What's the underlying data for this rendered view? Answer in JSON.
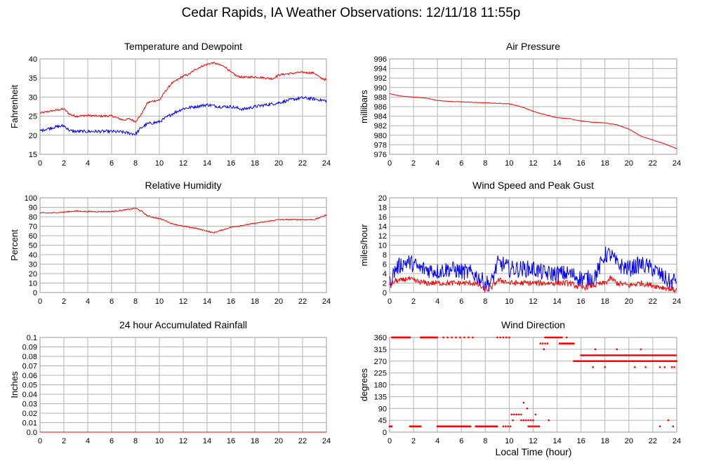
{
  "page": {
    "title": "Cedar Rapids, IA Weather Observations: 12/11/18 11:55p",
    "x_axis_label": "Local Time (hour)"
  },
  "colors": {
    "red": "#ff0000",
    "blue": "#0000ff",
    "grid": "#b4b4b4",
    "frame": "#999999"
  },
  "chart_data": [
    {
      "id": "temperature",
      "type": "line",
      "title": "Temperature and Dewpoint",
      "ylabel": "Fahrenheit",
      "xlim": [
        0,
        24
      ],
      "ylim": [
        15,
        40
      ],
      "xticks": [
        0,
        2,
        4,
        6,
        8,
        10,
        12,
        14,
        16,
        18,
        20,
        22,
        24
      ],
      "yticks": [
        15,
        20,
        25,
        30,
        35,
        40
      ],
      "series": [
        {
          "color": "#ff0000",
          "jitter": 0.25,
          "x": [
            0,
            1,
            2,
            2.5,
            3,
            4,
            5,
            6,
            6.5,
            7,
            7.5,
            8,
            8.5,
            9,
            9.5,
            10,
            10.5,
            11,
            12,
            12.5,
            13,
            13.5,
            14,
            14.5,
            15,
            15.5,
            16,
            16.5,
            17,
            18,
            19,
            19.5,
            20,
            21,
            22,
            23,
            23.5,
            24
          ],
          "y": [
            25.8,
            26.4,
            26.9,
            25.5,
            25.0,
            25.2,
            25.0,
            25.1,
            24.5,
            24.0,
            24.3,
            23.6,
            25.5,
            28.5,
            29.0,
            29.2,
            31.5,
            33.5,
            35.5,
            36.0,
            37.2,
            38.0,
            38.6,
            39.0,
            38.5,
            38.0,
            36.5,
            35.5,
            35.2,
            35.3,
            35.0,
            34.8,
            35.8,
            36.2,
            36.5,
            36.3,
            35.0,
            34.5
          ]
        },
        {
          "color": "#0000ff",
          "jitter": 0.4,
          "x": [
            0,
            1,
            2,
            2.5,
            3,
            4,
            5,
            6,
            7,
            8,
            8.5,
            9,
            10,
            11,
            12,
            13,
            14,
            15,
            16,
            17,
            18,
            19,
            20,
            21,
            22,
            23,
            24
          ],
          "y": [
            21.2,
            22.0,
            22.5,
            21.2,
            21.0,
            21.0,
            21.0,
            21.0,
            20.8,
            20.3,
            22.0,
            23.0,
            23.5,
            25.5,
            27.0,
            27.5,
            28.0,
            27.5,
            27.5,
            26.8,
            27.5,
            28.0,
            28.5,
            29.3,
            29.8,
            29.5,
            29.0
          ]
        }
      ]
    },
    {
      "id": "pressure",
      "type": "line",
      "title": "Air Pressure",
      "ylabel": "millibars",
      "xlim": [
        0,
        24
      ],
      "ylim": [
        976,
        996
      ],
      "xticks": [
        0,
        2,
        4,
        6,
        8,
        10,
        12,
        14,
        16,
        18,
        20,
        22,
        24
      ],
      "yticks": [
        976,
        978,
        980,
        982,
        984,
        986,
        988,
        990,
        992,
        994,
        996
      ],
      "series": [
        {
          "color": "#ff0000",
          "jitter": 0.05,
          "x": [
            0,
            1,
            2,
            3,
            4,
            5,
            6,
            7,
            8,
            9,
            10,
            11,
            12,
            13,
            14,
            15,
            16,
            17,
            18,
            19,
            20,
            21,
            22,
            23,
            24
          ],
          "y": [
            988.7,
            988.2,
            988.0,
            987.8,
            987.3,
            987.1,
            987.0,
            986.9,
            986.8,
            986.7,
            986.6,
            986.0,
            985.0,
            984.3,
            983.7,
            983.5,
            983.0,
            982.7,
            982.6,
            982.2,
            981.3,
            979.8,
            979.0,
            978.2,
            977.2
          ]
        }
      ]
    },
    {
      "id": "humidity",
      "type": "line",
      "title": "Relative Humidity",
      "ylabel": "Percent",
      "xlim": [
        0,
        24
      ],
      "ylim": [
        0,
        100
      ],
      "xticks": [
        0,
        2,
        4,
        6,
        8,
        10,
        12,
        14,
        16,
        18,
        20,
        22,
        24
      ],
      "yticks": [
        0,
        10,
        20,
        30,
        40,
        50,
        60,
        70,
        80,
        90,
        100
      ],
      "series": [
        {
          "color": "#ff0000",
          "jitter": 0.6,
          "x": [
            0,
            1,
            2,
            3,
            4,
            5,
            6,
            7,
            8,
            8.5,
            9,
            10,
            10.5,
            11,
            12,
            13,
            14,
            14.5,
            15,
            16,
            17,
            18,
            19,
            20,
            21,
            22,
            23,
            24
          ],
          "y": [
            84,
            84,
            85,
            86,
            85.5,
            85.5,
            85.5,
            87,
            89,
            86,
            81,
            78,
            76,
            73,
            70,
            68,
            65,
            63,
            65,
            69,
            71,
            73,
            75,
            77,
            77,
            77,
            77,
            82
          ]
        }
      ]
    },
    {
      "id": "wind-speed",
      "type": "line",
      "title": "Wind Speed and Peak Gust",
      "ylabel": "miles/hour",
      "xlim": [
        0,
        24
      ],
      "ylim": [
        0,
        20
      ],
      "xticks": [
        0,
        2,
        4,
        6,
        8,
        10,
        12,
        14,
        16,
        18,
        20,
        22,
        24
      ],
      "yticks": [
        0,
        2,
        4,
        6,
        8,
        10,
        12,
        14,
        16,
        18,
        20
      ],
      "series": [
        {
          "color": "#0000ff",
          "jitter": 1.8,
          "x": [
            0,
            0.5,
            1,
            1.5,
            2,
            2.5,
            3,
            4,
            5,
            6,
            7,
            7.5,
            8,
            8.5,
            9,
            9.5,
            10,
            11,
            12,
            13,
            14,
            15,
            16,
            17,
            17.5,
            18,
            18.5,
            19,
            20,
            21,
            22,
            23,
            23.5,
            24
          ],
          "y": [
            2,
            5,
            6,
            6.5,
            6,
            5,
            5,
            4.5,
            5,
            4.5,
            4,
            3,
            2,
            2,
            6,
            6,
            5,
            5,
            5,
            4,
            4,
            4,
            3,
            3,
            5,
            8,
            8,
            6,
            5,
            6,
            5,
            3,
            2,
            3
          ]
        },
        {
          "color": "#ff0000",
          "jitter": 0.6,
          "x": [
            0,
            0.5,
            1,
            1.5,
            2,
            3,
            4,
            5,
            6,
            7,
            7.5,
            8,
            8.5,
            9,
            9.5,
            10,
            11,
            12,
            13,
            14,
            15,
            16,
            17,
            18,
            18.5,
            19,
            20,
            21,
            22,
            23,
            24
          ],
          "y": [
            1.5,
            2.5,
            2.5,
            3,
            2.5,
            2,
            2,
            2,
            2,
            2,
            1.5,
            0.5,
            1,
            2.5,
            2.5,
            2,
            2,
            2,
            2,
            2,
            2,
            1,
            1.5,
            2,
            3,
            2,
            1.5,
            2,
            1.5,
            1,
            0.5
          ]
        }
      ]
    },
    {
      "id": "rainfall",
      "type": "line",
      "title": "24 hour Accumulated Rainfall",
      "ylabel": "Inches",
      "xlim": [
        0,
        24
      ],
      "ylim": [
        0,
        0.1
      ],
      "xticks": [
        0,
        2,
        4,
        6,
        8,
        10,
        12,
        14,
        16,
        18,
        20,
        22,
        24
      ],
      "yticks": [
        0.0,
        0.01,
        0.02,
        0.03,
        0.04,
        0.05,
        0.06,
        0.07,
        0.08,
        0.09,
        0.1
      ],
      "ytick_labels": [
        "0.0",
        "0.01",
        "0.02",
        "0.03",
        "0.04",
        "0.05",
        "0.06",
        "0.07",
        "0.08",
        "0.09",
        "0.1"
      ],
      "series": [
        {
          "color": "#ff0000",
          "jitter": 0,
          "x": [
            0,
            24
          ],
          "y": [
            0,
            0
          ]
        }
      ]
    },
    {
      "id": "wind-direction",
      "type": "scatter",
      "title": "Wind Direction",
      "ylabel": "degrees",
      "xlim": [
        0,
        24
      ],
      "ylim": [
        0,
        360
      ],
      "xticks": [
        0,
        2,
        4,
        6,
        8,
        10,
        12,
        14,
        16,
        18,
        20,
        22,
        24
      ],
      "yticks": [
        0,
        45,
        90,
        135,
        180,
        225,
        270,
        315,
        360
      ],
      "segments": [
        {
          "x0": 0.0,
          "x1": 0.2,
          "y": 22,
          "step": 0.06
        },
        {
          "x0": 0.2,
          "x1": 1.7,
          "y": 360,
          "step": 0.06
        },
        {
          "x0": 1.7,
          "x1": 2.6,
          "y": 22,
          "step": 0.06
        },
        {
          "x0": 2.6,
          "x1": 4.0,
          "y": 360,
          "step": 0.06
        },
        {
          "x0": 4.0,
          "x1": 6.8,
          "y": 22,
          "step": 0.06
        },
        {
          "x0": 4.5,
          "x1": 7.0,
          "y": 360,
          "step": 0.35
        },
        {
          "x0": 7.2,
          "x1": 9.0,
          "y": 22,
          "step": 0.06
        },
        {
          "x0": 9.0,
          "x1": 10.0,
          "y": 360,
          "step": 0.25
        },
        {
          "x0": 9.5,
          "x1": 10.2,
          "y": 22,
          "step": 0.2
        },
        {
          "x0": 10.2,
          "x1": 11.0,
          "y": 67,
          "step": 0.2
        },
        {
          "x0": 11.0,
          "x1": 12.0,
          "y": 45,
          "step": 0.2
        },
        {
          "x0": 11.6,
          "x1": 12.6,
          "y": 22,
          "step": 0.15
        },
        {
          "x0": 12.6,
          "x1": 13.2,
          "y": 337,
          "step": 0.2
        },
        {
          "x0": 13.0,
          "x1": 14.4,
          "y": 360,
          "step": 0.1
        },
        {
          "x0": 14.2,
          "x1": 15.4,
          "y": 337,
          "step": 0.06
        },
        {
          "x0": 15.4,
          "x1": 24.0,
          "y": 270,
          "step": 0.06
        },
        {
          "x0": 16.0,
          "x1": 24.0,
          "y": 292,
          "step": 0.12
        }
      ],
      "points": [
        [
          11.2,
          112
        ],
        [
          11.5,
          90
        ],
        [
          10.3,
          45
        ],
        [
          12.9,
          315
        ],
        [
          14.8,
          360
        ],
        [
          16.2,
          292
        ],
        [
          17.0,
          247
        ],
        [
          17.2,
          315
        ],
        [
          18.0,
          247
        ],
        [
          19.0,
          315
        ],
        [
          20.5,
          247
        ],
        [
          21.0,
          315
        ],
        [
          21.4,
          247
        ],
        [
          22.6,
          247
        ],
        [
          23.0,
          247
        ],
        [
          23.6,
          247
        ],
        [
          23.8,
          247
        ],
        [
          22.6,
          22
        ],
        [
          23.3,
          45
        ],
        [
          23.7,
          22
        ],
        [
          13.3,
          45
        ],
        [
          12.2,
          67
        ]
      ],
      "color": "#ff0000"
    }
  ]
}
